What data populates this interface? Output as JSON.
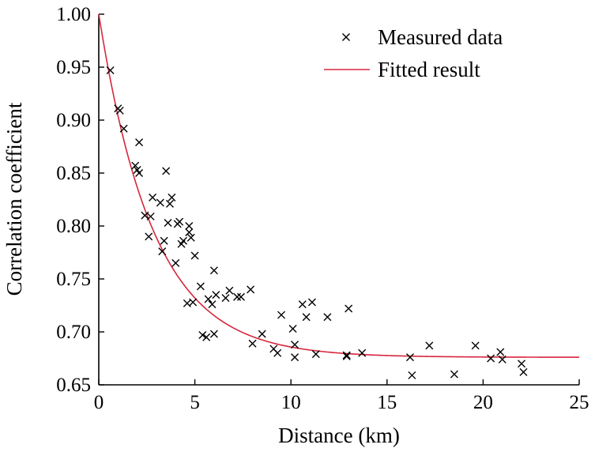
{
  "chart_data": {
    "type": "scatter",
    "xlabel": "Distance (km)",
    "ylabel": "Correlation coefficient",
    "xlim": [
      0,
      25
    ],
    "ylim": [
      0.65,
      1.0
    ],
    "xticks": [
      "0",
      "5",
      "10",
      "15",
      "20",
      "25"
    ],
    "yticks": [
      "0.65",
      "0.70",
      "0.75",
      "0.80",
      "0.85",
      "0.90",
      "0.95",
      "1.00"
    ],
    "grid": false,
    "legend_position": "top-right",
    "colors": {
      "measured": "#000000",
      "fitted": "#d7263d"
    },
    "series": [
      {
        "name": "Measured data",
        "kind": "scatter",
        "marker": "x",
        "points": [
          [
            0.6,
            0.947
          ],
          [
            1.0,
            0.911
          ],
          [
            1.1,
            0.909
          ],
          [
            1.3,
            0.892
          ],
          [
            1.9,
            0.857
          ],
          [
            2.0,
            0.853
          ],
          [
            2.1,
            0.85
          ],
          [
            2.1,
            0.879
          ],
          [
            2.4,
            0.81
          ],
          [
            2.6,
            0.79
          ],
          [
            2.7,
            0.809
          ],
          [
            2.8,
            0.827
          ],
          [
            3.2,
            0.822
          ],
          [
            3.3,
            0.776
          ],
          [
            3.4,
            0.786
          ],
          [
            3.5,
            0.852
          ],
          [
            3.6,
            0.803
          ],
          [
            3.7,
            0.821
          ],
          [
            3.8,
            0.827
          ],
          [
            4.0,
            0.765
          ],
          [
            4.1,
            0.802
          ],
          [
            4.2,
            0.804
          ],
          [
            4.3,
            0.783
          ],
          [
            4.4,
            0.786
          ],
          [
            4.6,
            0.727
          ],
          [
            4.7,
            0.8
          ],
          [
            4.7,
            0.794
          ],
          [
            4.8,
            0.789
          ],
          [
            4.9,
            0.728
          ],
          [
            5.0,
            0.772
          ],
          [
            5.3,
            0.743
          ],
          [
            5.4,
            0.697
          ],
          [
            5.6,
            0.695
          ],
          [
            5.7,
            0.731
          ],
          [
            5.9,
            0.726
          ],
          [
            6.0,
            0.698
          ],
          [
            6.0,
            0.758
          ],
          [
            6.1,
            0.735
          ],
          [
            6.6,
            0.732
          ],
          [
            6.8,
            0.739
          ],
          [
            7.2,
            0.733
          ],
          [
            7.4,
            0.733
          ],
          [
            7.9,
            0.74
          ],
          [
            8.0,
            0.689
          ],
          [
            8.5,
            0.698
          ],
          [
            9.1,
            0.684
          ],
          [
            9.3,
            0.68
          ],
          [
            9.5,
            0.716
          ],
          [
            10.1,
            0.703
          ],
          [
            10.2,
            0.676
          ],
          [
            10.2,
            0.688
          ],
          [
            10.6,
            0.726
          ],
          [
            10.8,
            0.714
          ],
          [
            11.1,
            0.728
          ],
          [
            11.3,
            0.679
          ],
          [
            11.9,
            0.714
          ],
          [
            12.9,
            0.677
          ],
          [
            12.9,
            0.678
          ],
          [
            13.0,
            0.722
          ],
          [
            13.7,
            0.68
          ],
          [
            16.2,
            0.676
          ],
          [
            16.3,
            0.659
          ],
          [
            17.2,
            0.687
          ],
          [
            18.5,
            0.66
          ],
          [
            19.6,
            0.687
          ],
          [
            20.4,
            0.675
          ],
          [
            20.9,
            0.681
          ],
          [
            21.0,
            0.674
          ],
          [
            22.0,
            0.67
          ],
          [
            22.1,
            0.662
          ]
        ]
      },
      {
        "name": "Fitted result",
        "kind": "line",
        "model": {
          "form": "a + b*exp(-x/c)",
          "a": 0.676,
          "b": 0.324,
          "c": 2.85
        }
      }
    ]
  }
}
